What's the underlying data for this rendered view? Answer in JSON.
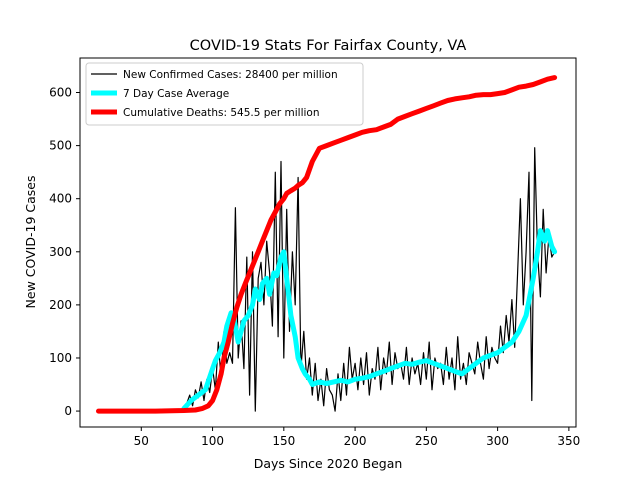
{
  "chart_data": {
    "type": "line",
    "title": "COVID-19 Stats For Fairfax County, VA",
    "xlabel": "Days Since 2020 Began",
    "ylabel": "New COVID-19 Cases",
    "xlim": [
      7,
      355
    ],
    "ylim": [
      -30,
      665
    ],
    "xticks": [
      50,
      100,
      150,
      200,
      250,
      300,
      350
    ],
    "yticks": [
      0,
      100,
      200,
      300,
      400,
      500,
      600
    ],
    "grid": false,
    "legend_position": "top-left",
    "series": [
      {
        "name": "New Confirmed Cases: 28400 per million",
        "color": "#000000",
        "x": [
          80,
          82,
          84,
          86,
          88,
          90,
          92,
          94,
          96,
          98,
          100,
          102,
          104,
          106,
          108,
          110,
          112,
          114,
          116,
          118,
          120,
          122,
          124,
          126,
          128,
          130,
          132,
          134,
          136,
          138,
          140,
          142,
          144,
          146,
          148,
          150,
          152,
          154,
          156,
          158,
          160,
          162,
          164,
          166,
          168,
          170,
          172,
          174,
          176,
          178,
          180,
          182,
          184,
          186,
          188,
          190,
          192,
          194,
          196,
          198,
          200,
          202,
          204,
          206,
          208,
          210,
          212,
          214,
          216,
          218,
          220,
          222,
          224,
          226,
          228,
          230,
          232,
          234,
          236,
          238,
          240,
          242,
          244,
          246,
          248,
          250,
          252,
          254,
          256,
          258,
          260,
          262,
          264,
          266,
          268,
          270,
          272,
          274,
          276,
          278,
          280,
          282,
          284,
          286,
          288,
          290,
          292,
          294,
          296,
          298,
          300,
          302,
          304,
          306,
          308,
          310,
          312,
          314,
          316,
          318,
          320,
          322,
          324,
          326,
          328,
          330,
          332,
          334,
          336,
          338,
          340
        ],
        "y": [
          2,
          15,
          30,
          10,
          40,
          25,
          55,
          20,
          60,
          35,
          80,
          40,
          130,
          60,
          150,
          90,
          110,
          90,
          383,
          100,
          170,
          80,
          290,
          30,
          300,
          0,
          250,
          280,
          200,
          320,
          260,
          160,
          450,
          140,
          470,
          100,
          380,
          150,
          300,
          200,
          440,
          80,
          150,
          60,
          100,
          30,
          90,
          20,
          60,
          10,
          80,
          40,
          30,
          0,
          70,
          20,
          90,
          30,
          120,
          60,
          90,
          40,
          100,
          50,
          110,
          30,
          80,
          60,
          120,
          40,
          100,
          70,
          130,
          50,
          110,
          80,
          90,
          60,
          120,
          50,
          100,
          70,
          90,
          50,
          110,
          60,
          130,
          40,
          100,
          80,
          90,
          50,
          120,
          60,
          100,
          40,
          140,
          60,
          90,
          50,
          110,
          90,
          70,
          130,
          90,
          60,
          140,
          80,
          120,
          100,
          90,
          160,
          110,
          180,
          130,
          210,
          120,
          260,
          400,
          200,
          300,
          450,
          20,
          496,
          300,
          215,
          380,
          260,
          330,
          290,
          300
        ]
      },
      {
        "name": "7 Day Case Average",
        "color": "#00ffff",
        "x": [
          80,
          85,
          90,
          95,
          100,
          102,
          105,
          108,
          110,
          113,
          115,
          118,
          120,
          122,
          125,
          128,
          130,
          133,
          135,
          138,
          140,
          143,
          145,
          148,
          150,
          152,
          155,
          158,
          160,
          163,
          165,
          168,
          170,
          175,
          180,
          185,
          190,
          195,
          200,
          205,
          210,
          215,
          220,
          225,
          230,
          235,
          240,
          245,
          250,
          255,
          260,
          265,
          270,
          275,
          280,
          285,
          290,
          295,
          300,
          305,
          310,
          315,
          320,
          325,
          328,
          330,
          333,
          335,
          338,
          340
        ],
        "y": [
          5,
          20,
          30,
          40,
          80,
          95,
          110,
          130,
          160,
          185,
          175,
          130,
          150,
          170,
          180,
          200,
          230,
          210,
          240,
          250,
          220,
          260,
          255,
          290,
          300,
          250,
          180,
          140,
          100,
          80,
          70,
          60,
          50,
          55,
          52,
          55,
          58,
          55,
          60,
          62,
          65,
          70,
          75,
          80,
          85,
          90,
          88,
          92,
          95,
          90,
          85,
          80,
          75,
          70,
          80,
          90,
          100,
          105,
          110,
          120,
          130,
          150,
          180,
          250,
          300,
          340,
          320,
          340,
          310,
          300
        ]
      },
      {
        "name": "Cumulative Deaths: 545.5 per million",
        "color": "#ff0000",
        "x": [
          20,
          40,
          60,
          80,
          88,
          93,
          97,
          100,
          103,
          106,
          108,
          111,
          114,
          117,
          120,
          123,
          126,
          129,
          132,
          135,
          138,
          141,
          144,
          147,
          150,
          152,
          155,
          158,
          160,
          163,
          166,
          170,
          175,
          180,
          185,
          190,
          195,
          200,
          205,
          210,
          215,
          220,
          225,
          230,
          235,
          240,
          245,
          250,
          255,
          260,
          265,
          270,
          275,
          280,
          285,
          290,
          295,
          300,
          305,
          310,
          315,
          320,
          325,
          330,
          335,
          340
        ],
        "y": [
          0,
          0,
          0,
          1,
          2,
          5,
          10,
          20,
          40,
          70,
          100,
          130,
          165,
          195,
          220,
          240,
          260,
          280,
          300,
          320,
          340,
          360,
          375,
          390,
          400,
          410,
          415,
          420,
          425,
          430,
          440,
          470,
          495,
          500,
          505,
          510,
          515,
          520,
          525,
          528,
          530,
          535,
          540,
          550,
          555,
          560,
          565,
          570,
          575,
          580,
          585,
          588,
          590,
          592,
          595,
          596,
          596,
          598,
          600,
          605,
          610,
          612,
          615,
          620,
          625,
          628
        ]
      }
    ]
  }
}
